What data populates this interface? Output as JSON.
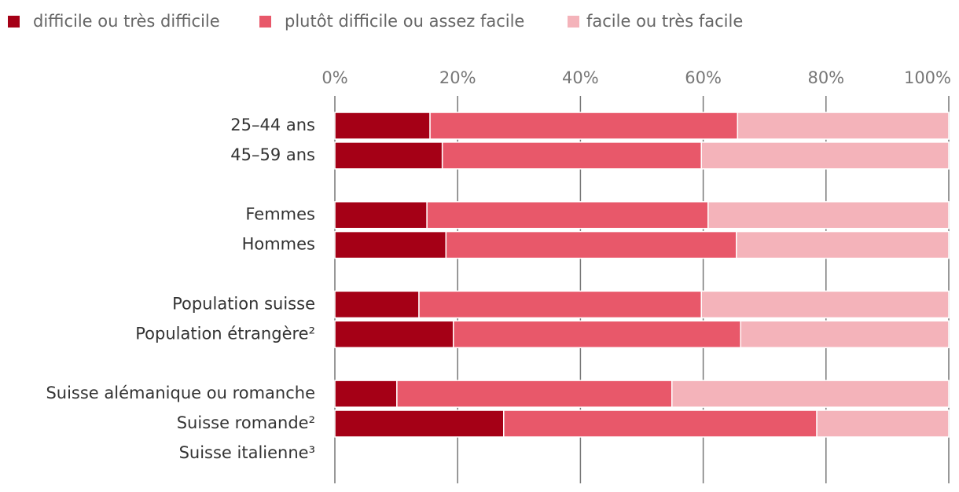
{
  "chart_data": {
    "type": "stacked-barh",
    "categories": [
      "25–44 ans",
      "45–59 ans",
      null,
      "Femmes",
      "Hommes",
      null,
      "Population suisse",
      "Population étrangère²",
      null,
      "Suisse alémanique ou romanche",
      "Suisse romande²",
      "Suisse italienne³"
    ],
    "series": [
      {
        "name": "difficile ou très difficile",
        "color": "#a50016",
        "values": [
          15.5,
          17.5,
          null,
          15.0,
          18.1,
          null,
          13.7,
          19.3,
          null,
          10.1,
          27.5,
          null
        ]
      },
      {
        "name": "plutôt difficile ou assez facile",
        "color": "#e8586a",
        "values": [
          50.1,
          42.2,
          null,
          45.8,
          47.3,
          null,
          46.0,
          46.8,
          null,
          44.8,
          51.0,
          null
        ]
      },
      {
        "name": "facile ou très facile",
        "color": "#f4b3ba",
        "values": [
          34.4,
          40.3,
          null,
          39.2,
          34.6,
          null,
          40.3,
          33.9,
          null,
          45.1,
          21.5,
          null
        ]
      }
    ],
    "xlim": [
      0,
      100
    ],
    "xticks": [
      {
        "value": 0,
        "label": "0%"
      },
      {
        "value": 20,
        "label": "20%"
      },
      {
        "value": 40,
        "label": "40%"
      },
      {
        "value": 60,
        "label": "60%"
      },
      {
        "value": 80,
        "label": "80%"
      },
      {
        "value": 100,
        "label": "100%"
      }
    ],
    "grid": true
  }
}
